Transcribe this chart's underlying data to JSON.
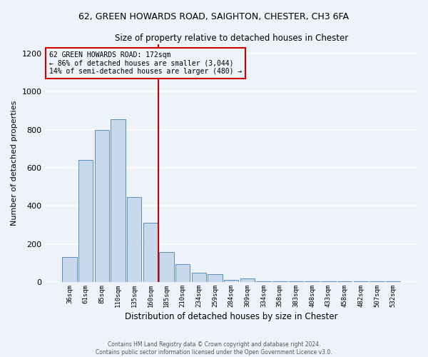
{
  "title1": "62, GREEN HOWARDS ROAD, SAIGHTON, CHESTER, CH3 6FA",
  "title2": "Size of property relative to detached houses in Chester",
  "xlabel": "Distribution of detached houses by size in Chester",
  "ylabel": "Number of detached properties",
  "bar_color": "#c8d8ed",
  "bar_edge_color": "#5b8db8",
  "categories": [
    "36sqm",
    "61sqm",
    "85sqm",
    "110sqm",
    "135sqm",
    "160sqm",
    "185sqm",
    "210sqm",
    "234sqm",
    "259sqm",
    "284sqm",
    "309sqm",
    "334sqm",
    "358sqm",
    "383sqm",
    "408sqm",
    "433sqm",
    "458sqm",
    "482sqm",
    "507sqm",
    "532sqm"
  ],
  "values": [
    130,
    640,
    800,
    855,
    445,
    310,
    158,
    95,
    50,
    40,
    12,
    20,
    5,
    5,
    5,
    5,
    2,
    5,
    2,
    2,
    5
  ],
  "vline_color": "#cc0000",
  "annotation_line1": "62 GREEN HOWARDS ROAD: 172sqm",
  "annotation_line2": "← 86% of detached houses are smaller (3,044)",
  "annotation_line3": "14% of semi-detached houses are larger (480) →",
  "annotation_box_color": "#cc0000",
  "ylim": [
    0,
    1250
  ],
  "yticks": [
    0,
    200,
    400,
    600,
    800,
    1000,
    1200
  ],
  "footer1": "Contains HM Land Registry data © Crown copyright and database right 2024.",
  "footer2": "Contains public sector information licensed under the Open Government Licence v3.0.",
  "background_color": "#eef2f9",
  "grid_color": "#ffffff"
}
